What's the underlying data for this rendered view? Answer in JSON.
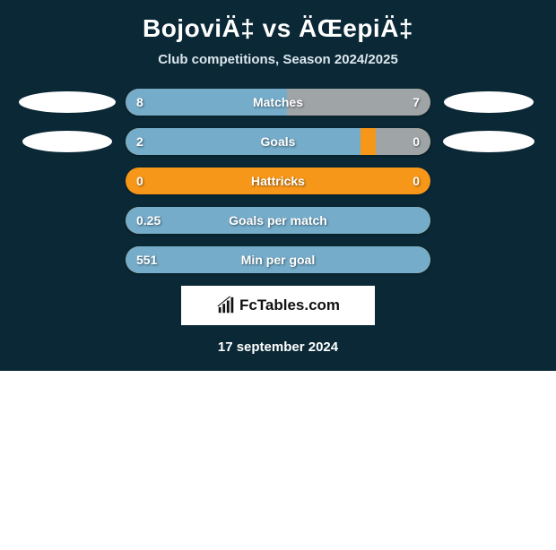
{
  "title": "BojoviÄ‡ vs ÄŒepiÄ‡",
  "subtitle": "Club competitions, Season 2024/2025",
  "date": "17 september 2024",
  "brand": "FcTables.com",
  "colors": {
    "background_dark": "#0a2836",
    "bar_bg": "#f7971a",
    "fill_left": "#75acca",
    "fill_right": "#9fa4a7",
    "ellipse": "#ffffff",
    "text": "#ffffff"
  },
  "stats": [
    {
      "label": "Matches",
      "left_val": "8",
      "right_val": "7",
      "left_pct": 53,
      "right_pct": 47,
      "left_ellipse_w": 108,
      "left_ellipse_h": 24,
      "right_ellipse_w": 100,
      "right_ellipse_h": 24
    },
    {
      "label": "Goals",
      "left_val": "2",
      "right_val": "0",
      "left_pct": 77,
      "right_pct": 18,
      "left_ellipse_w": 100,
      "left_ellipse_h": 24,
      "right_ellipse_w": 102,
      "right_ellipse_h": 24
    },
    {
      "label": "Hattricks",
      "left_val": "0",
      "right_val": "0",
      "left_pct": 0,
      "right_pct": 0,
      "left_ellipse_w": 0,
      "left_ellipse_h": 0,
      "right_ellipse_w": 0,
      "right_ellipse_h": 0
    },
    {
      "label": "Goals per match",
      "left_val": "0.25",
      "right_val": "",
      "left_pct": 100,
      "right_pct": 0,
      "left_ellipse_w": 0,
      "left_ellipse_h": 0,
      "right_ellipse_w": 0,
      "right_ellipse_h": 0
    },
    {
      "label": "Min per goal",
      "left_val": "551",
      "right_val": "",
      "left_pct": 100,
      "right_pct": 0,
      "left_ellipse_w": 0,
      "left_ellipse_h": 0,
      "right_ellipse_w": 0,
      "right_ellipse_h": 0
    }
  ]
}
